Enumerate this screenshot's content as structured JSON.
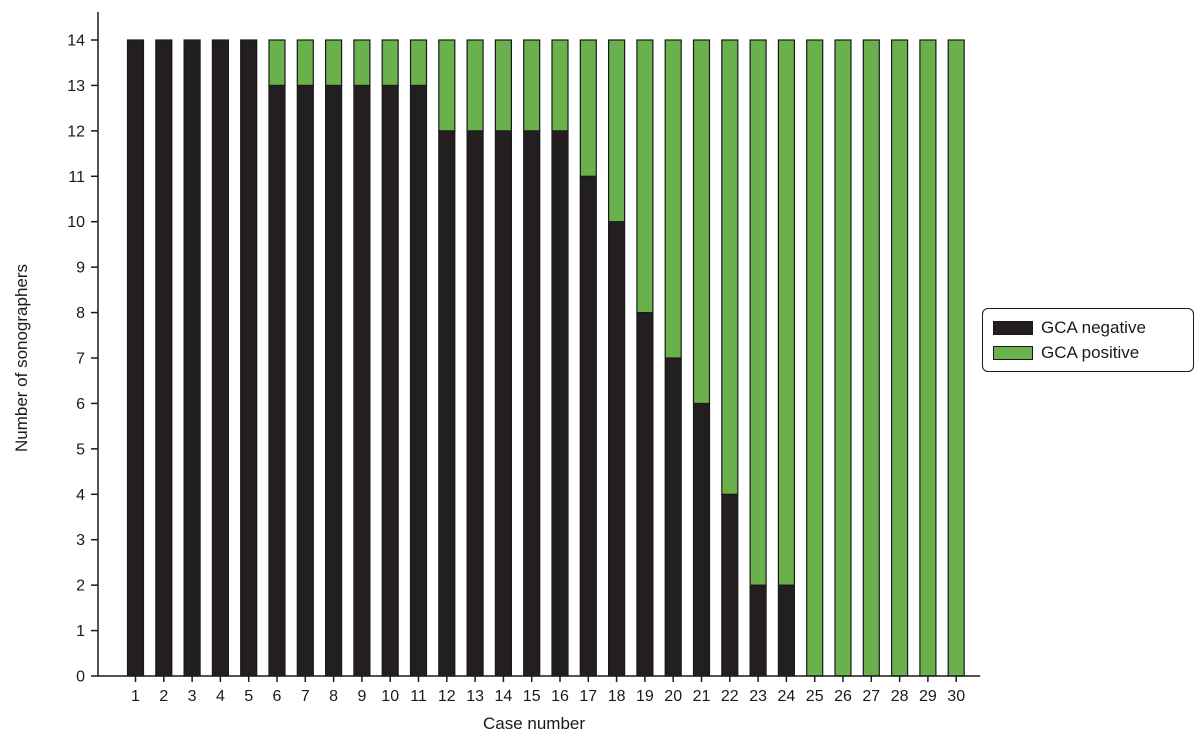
{
  "chart_data": {
    "type": "bar",
    "stacked": true,
    "title": "",
    "xlabel": "Case number",
    "ylabel": "Number of sonographers",
    "ylim": [
      0,
      14
    ],
    "yticks": [
      0,
      1,
      2,
      3,
      4,
      5,
      6,
      7,
      8,
      9,
      10,
      11,
      12,
      13,
      14
    ],
    "categories": [
      "1",
      "2",
      "3",
      "4",
      "5",
      "6",
      "7",
      "8",
      "9",
      "10",
      "11",
      "12",
      "13",
      "14",
      "15",
      "16",
      "17",
      "18",
      "19",
      "20",
      "21",
      "22",
      "23",
      "24",
      "25",
      "26",
      "27",
      "28",
      "29",
      "30"
    ],
    "series": [
      {
        "name": "GCA negative",
        "color": "#231f20",
        "values": [
          14,
          14,
          14,
          14,
          14,
          13,
          13,
          13,
          13,
          13,
          13,
          12,
          12,
          12,
          12,
          12,
          11,
          10,
          8,
          7,
          6,
          4,
          2,
          2,
          0,
          0,
          0,
          0,
          0,
          0
        ]
      },
      {
        "name": "GCA positive",
        "color": "#6ab04c",
        "values": [
          0,
          0,
          0,
          0,
          0,
          1,
          1,
          1,
          1,
          1,
          1,
          2,
          2,
          2,
          2,
          2,
          3,
          4,
          6,
          7,
          8,
          10,
          12,
          12,
          14,
          14,
          14,
          14,
          14,
          14
        ]
      }
    ],
    "legend_position": "right",
    "grid": false
  }
}
